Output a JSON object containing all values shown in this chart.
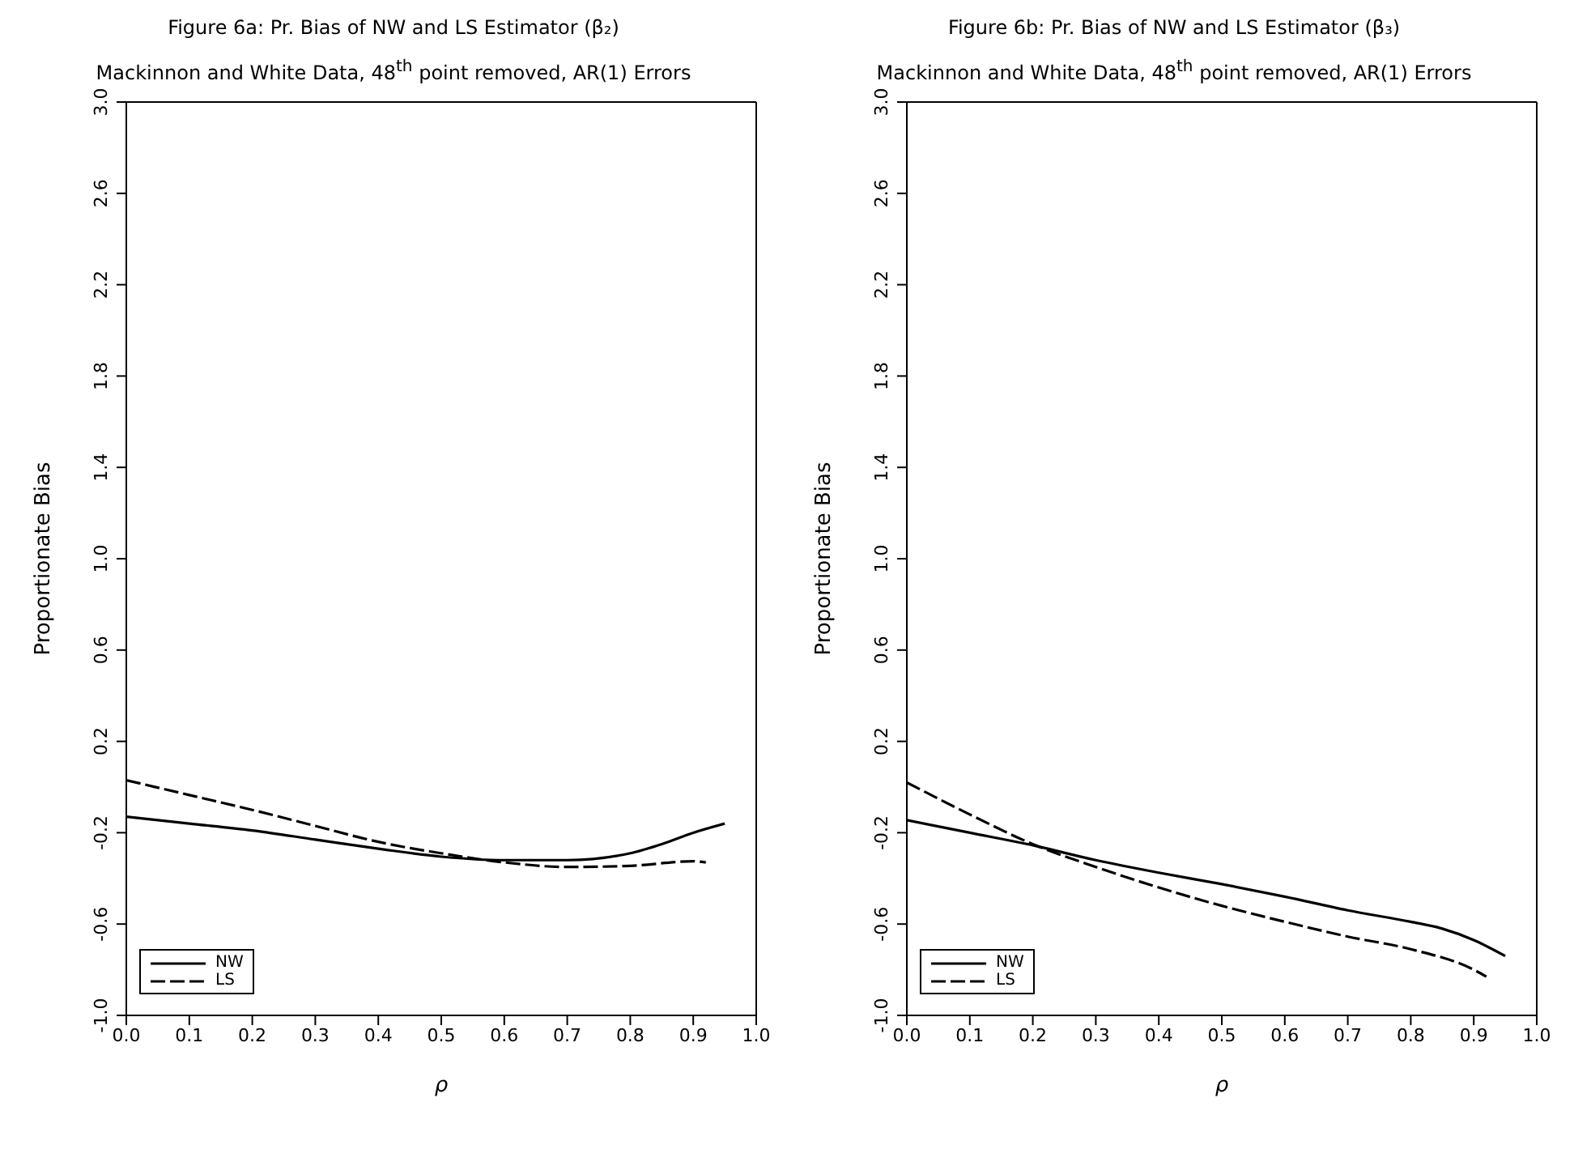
{
  "chart_data": [
    {
      "type": "line",
      "title": "Figure 6a: Pr. Bias of NW and LS Estimator (β₂)",
      "subtitle": "Mackinnon and White Data, 48$^{th}$ point removed, AR(1) Errors",
      "xlabel": "ρ",
      "ylabel": "Proportionate Bias",
      "x": [
        0,
        0.1,
        0.2,
        0.3,
        0.4,
        0.5,
        0.6,
        0.7,
        0.8,
        0.85,
        0.9,
        0.95
      ],
      "series": [
        {
          "name": "NW",
          "color": "#000000",
          "line_style": "solid",
          "values": [
            -0.13,
            -0.16,
            -0.19,
            -0.23,
            -0.27,
            -0.305,
            -0.32,
            -0.32,
            -0.29,
            -0.25,
            -0.2,
            -0.16
          ]
        },
        {
          "name": "LS",
          "color": "#000000",
          "line_style": "dashed",
          "x": [
            0,
            0.1,
            0.2,
            0.3,
            0.4,
            0.5,
            0.6,
            0.7,
            0.8,
            0.9,
            0.92
          ],
          "values": [
            0.03,
            -0.035,
            -0.1,
            -0.17,
            -0.24,
            -0.29,
            -0.33,
            -0.35,
            -0.345,
            -0.325,
            -0.33
          ]
        }
      ],
      "xlim": [
        0,
        1
      ],
      "ylim": [
        -1,
        3
      ],
      "xticks": [
        {
          "value": 0,
          "label": "0.0"
        },
        {
          "value": 0.1,
          "label": "0.1"
        },
        {
          "value": 0.2,
          "label": "0.2"
        },
        {
          "value": 0.3,
          "label": "0.3"
        },
        {
          "value": 0.4,
          "label": "0.4"
        },
        {
          "value": 0.5,
          "label": "0.5"
        },
        {
          "value": 0.6,
          "label": "0.6"
        },
        {
          "value": 0.7,
          "label": "0.7"
        },
        {
          "value": 0.8,
          "label": "0.8"
        },
        {
          "value": 0.9,
          "label": "0.9"
        },
        {
          "value": 1,
          "label": "1.0"
        }
      ],
      "yticks": [
        {
          "value": -1,
          "label": "-1.0"
        },
        -0.6,
        -0.2,
        0.2,
        0.6,
        {
          "value": 1,
          "label": "1.0"
        },
        1.4,
        1.8,
        2.2,
        2.6,
        {
          "value": 3,
          "label": "3.0"
        }
      ],
      "legend": "bottom left",
      "grid": false,
      "marker": "none"
    },
    {
      "type": "line",
      "title": "Figure 6b: Pr. Bias of NW and LS Estimator (β₃)",
      "subtitle": "Mackinnon and White Data, 48$^{th}$ point removed, AR(1) Errors",
      "xlabel": "ρ",
      "ylabel": "Proportionate Bias",
      "x": [
        0,
        0.1,
        0.2,
        0.3,
        0.4,
        0.5,
        0.6,
        0.7,
        0.8,
        0.85,
        0.9,
        0.95
      ],
      "series": [
        {
          "name": "NW",
          "color": "#000000",
          "line_style": "solid",
          "values": [
            -0.145,
            -0.2,
            -0.255,
            -0.32,
            -0.375,
            -0.425,
            -0.48,
            -0.54,
            -0.59,
            -0.62,
            -0.67,
            -0.74
          ]
        },
        {
          "name": "LS",
          "color": "#000000",
          "line_style": "dashed",
          "x": [
            0,
            0.1,
            0.2,
            0.3,
            0.4,
            0.5,
            0.6,
            0.7,
            0.8,
            0.9,
            0.92
          ],
          "values": [
            0.02,
            -0.12,
            -0.25,
            -0.35,
            -0.44,
            -0.52,
            -0.59,
            -0.655,
            -0.71,
            -0.8,
            -0.83
          ]
        }
      ],
      "xlim": [
        0,
        1
      ],
      "ylim": [
        -1,
        3
      ],
      "xticks": [
        {
          "value": 0,
          "label": "0.0"
        },
        {
          "value": 0.1,
          "label": "0.1"
        },
        {
          "value": 0.2,
          "label": "0.2"
        },
        {
          "value": 0.3,
          "label": "0.3"
        },
        {
          "value": 0.4,
          "label": "0.4"
        },
        {
          "value": 0.5,
          "label": "0.5"
        },
        {
          "value": 0.6,
          "label": "0.6"
        },
        {
          "value": 0.7,
          "label": "0.7"
        },
        {
          "value": 0.8,
          "label": "0.8"
        },
        {
          "value": 0.9,
          "label": "0.9"
        },
        {
          "value": 1,
          "label": "1.0"
        }
      ],
      "yticks": [
        {
          "value": -1,
          "label": "-1.0"
        },
        -0.6,
        -0.2,
        0.2,
        0.6,
        {
          "value": 1,
          "label": "1.0"
        },
        1.4,
        1.8,
        2.2,
        2.6,
        {
          "value": 3,
          "label": "3.0"
        }
      ],
      "legend": "bottom left",
      "grid": false,
      "marker": "none"
    }
  ]
}
